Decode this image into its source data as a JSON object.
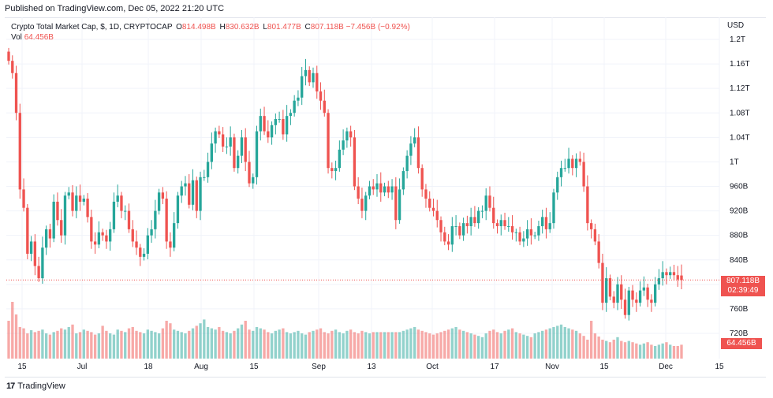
{
  "header": {
    "published": "Published on TradingView.com, Dec 05, 2022 21:20 UTC"
  },
  "legend": {
    "symbol": "Crypto Total Market Cap, $, 1D, CRYPTOCAP",
    "o_label": "O",
    "o": "814.498B",
    "h_label": "H",
    "h": "830.632B",
    "l_label": "L",
    "l": "801.477B",
    "c_label": "C",
    "c": "807.118B",
    "change": "−7.456B (−0.92%)",
    "vol_label": "Vol",
    "vol": "64.456B"
  },
  "axis": {
    "currency": "USD",
    "price_badge": "807.118B",
    "countdown": "02:39:49",
    "vol_badge": "64.456B"
  },
  "footer": {
    "brand": "TradingView"
  },
  "colors": {
    "up": "#26a69a",
    "down": "#ef5350",
    "grid": "#f0f3fa",
    "axis_text": "#131722"
  },
  "chart_data": {
    "type": "candlestick",
    "y_ticks": [
      "1.2T",
      "1.16T",
      "1.12T",
      "1.08T",
      "1.04T",
      "1T",
      "960B",
      "920B",
      "880B",
      "840B",
      "800B",
      "760B",
      "720B"
    ],
    "y_tick_values": [
      1200,
      1160,
      1120,
      1080,
      1040,
      1000,
      960,
      920,
      880,
      840,
      800,
      760,
      720
    ],
    "x_ticks": [
      "15",
      "Jul",
      "18",
      "Aug",
      "15",
      "Sep",
      "13",
      "Oct",
      "17",
      "Nov",
      "15",
      "Dec",
      "15"
    ],
    "units": "billion USD",
    "last_close": 807.118,
    "closes": [
      1165,
      1145,
      1080,
      955,
      925,
      850,
      870,
      830,
      810,
      860,
      890,
      875,
      935,
      905,
      880,
      945,
      950,
      920,
      945,
      935,
      940,
      910,
      870,
      865,
      885,
      880,
      870,
      890,
      935,
      945,
      920,
      920,
      890,
      870,
      860,
      845,
      850,
      880,
      890,
      920,
      950,
      940,
      870,
      860,
      900,
      945,
      960,
      965,
      930,
      970,
      920,
      975,
      975,
      1000,
      1030,
      1050,
      1045,
      1025,
      1025,
      1040,
      990,
      1010,
      1040,
      1000,
      965,
      975,
      1050,
      1075,
      1050,
      1040,
      1060,
      1070,
      1070,
      1045,
      1075,
      1080,
      1100,
      1105,
      1140,
      1150,
      1130,
      1145,
      1115,
      1100,
      1080,
      990,
      985,
      990,
      1020,
      1035,
      1050,
      1040,
      960,
      940,
      920,
      945,
      960,
      955,
      965,
      950,
      960,
      950,
      960,
      905,
      955,
      985,
      1010,
      1030,
      1040,
      990,
      955,
      940,
      925,
      920,
      905,
      885,
      870,
      865,
      895,
      895,
      880,
      900,
      895,
      910,
      900,
      920,
      920,
      945,
      925,
      900,
      895,
      905,
      895,
      895,
      885,
      885,
      870,
      875,
      890,
      880,
      880,
      895,
      910,
      890,
      900,
      950,
      975,
      990,
      990,
      1005,
      990,
      1005,
      1000,
      960,
      900,
      890,
      870,
      835,
      770,
      810,
      780,
      770,
      800,
      775,
      750,
      790,
      775,
      770,
      790,
      795,
      775,
      770,
      800,
      810,
      820,
      815,
      820,
      815,
      808,
      807
    ],
    "opens": [
      1180,
      1165,
      1145,
      1080,
      955,
      925,
      850,
      870,
      830,
      810,
      860,
      890,
      875,
      935,
      905,
      880,
      945,
      950,
      920,
      945,
      935,
      940,
      910,
      870,
      865,
      885,
      880,
      870,
      890,
      935,
      945,
      920,
      920,
      890,
      870,
      860,
      845,
      850,
      880,
      890,
      920,
      950,
      940,
      870,
      860,
      900,
      945,
      960,
      965,
      930,
      970,
      920,
      975,
      975,
      1000,
      1030,
      1050,
      1045,
      1025,
      1025,
      1040,
      990,
      1010,
      1040,
      1000,
      965,
      975,
      1050,
      1075,
      1050,
      1040,
      1060,
      1070,
      1070,
      1045,
      1075,
      1080,
      1100,
      1105,
      1140,
      1150,
      1130,
      1145,
      1115,
      1100,
      1080,
      990,
      985,
      990,
      1020,
      1035,
      1050,
      1040,
      960,
      940,
      920,
      945,
      960,
      955,
      965,
      950,
      960,
      950,
      960,
      905,
      955,
      985,
      1010,
      1030,
      1040,
      990,
      955,
      940,
      925,
      920,
      905,
      885,
      870,
      865,
      895,
      895,
      880,
      900,
      895,
      910,
      900,
      920,
      920,
      945,
      925,
      900,
      895,
      905,
      895,
      895,
      885,
      885,
      870,
      875,
      890,
      880,
      880,
      895,
      910,
      890,
      900,
      950,
      975,
      990,
      990,
      1005,
      990,
      1005,
      1000,
      960,
      900,
      890,
      870,
      835,
      770,
      810,
      780,
      770,
      800,
      775,
      750,
      790,
      775,
      770,
      790,
      795,
      775,
      770,
      800,
      810,
      820,
      815,
      820,
      815,
      814.5
    ],
    "volumes": [
      60,
      90,
      70,
      50,
      48,
      40,
      45,
      42,
      44,
      46,
      40,
      38,
      42,
      44,
      48,
      46,
      50,
      54,
      40,
      42,
      46,
      44,
      42,
      38,
      40,
      52,
      44,
      40,
      38,
      46,
      44,
      42,
      48,
      50,
      44,
      42,
      40,
      46,
      44,
      42,
      40,
      48,
      60,
      56,
      46,
      44,
      42,
      40,
      44,
      48,
      52,
      56,
      62,
      50,
      48,
      46,
      50,
      44,
      42,
      40,
      44,
      48,
      54,
      60,
      46,
      44,
      50,
      48,
      46,
      42,
      40,
      44,
      46,
      48,
      42,
      40,
      42,
      44,
      40,
      38,
      42,
      44,
      46,
      48,
      42,
      40,
      44,
      46,
      42,
      40,
      44,
      46,
      42,
      40,
      44,
      42,
      40,
      42,
      42,
      42,
      42,
      42,
      42,
      42,
      42,
      44,
      46,
      48,
      50,
      46,
      44,
      42,
      40,
      38,
      40,
      42,
      44,
      46,
      48,
      50,
      46,
      44,
      42,
      40,
      38,
      36,
      34,
      40,
      44,
      46,
      42,
      40,
      44,
      46,
      48,
      42,
      40,
      38,
      36,
      34,
      40,
      42,
      44,
      46,
      48,
      50,
      52,
      54,
      50,
      48,
      46,
      44,
      40,
      36,
      30,
      60,
      40,
      35,
      30,
      28,
      26,
      30,
      34,
      28,
      26,
      28,
      26,
      24,
      22,
      24,
      26,
      22,
      20,
      22,
      24,
      26,
      22,
      20,
      20,
      22
    ]
  }
}
